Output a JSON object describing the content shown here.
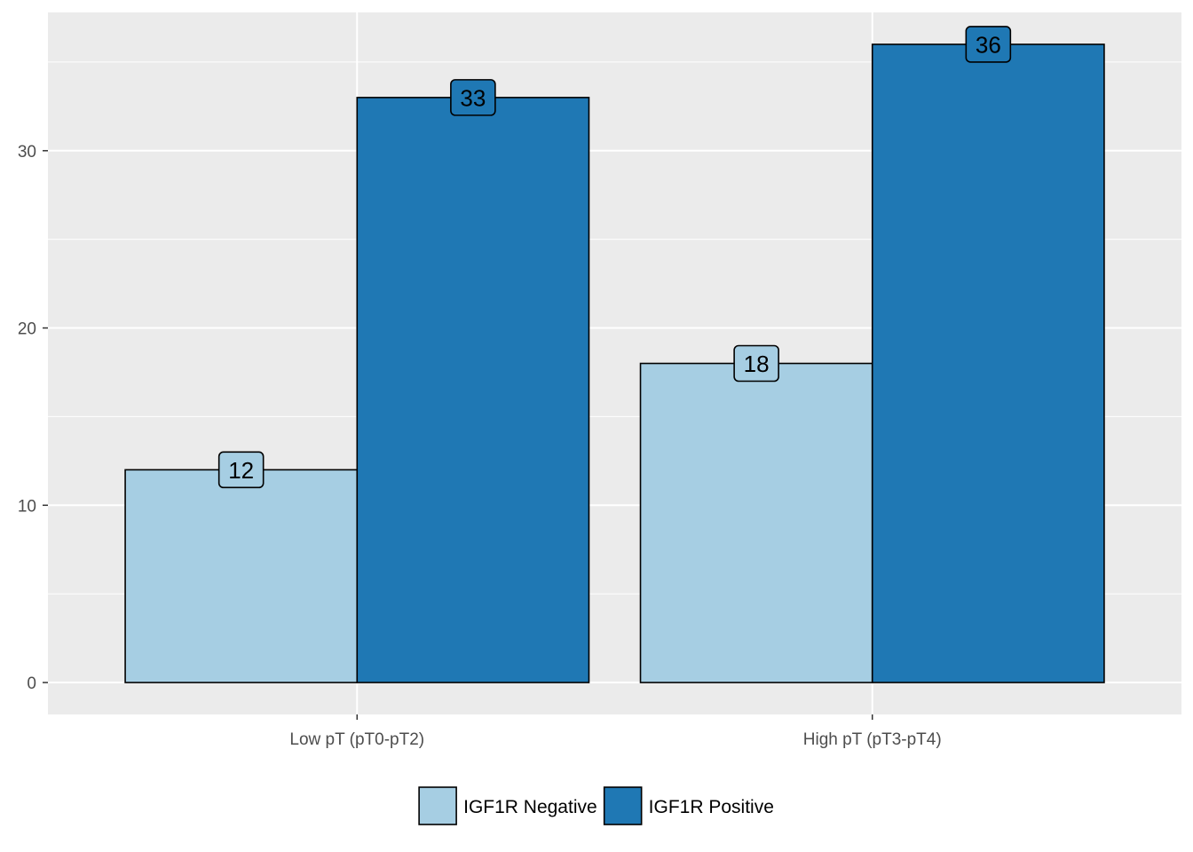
{
  "chart_data": {
    "type": "bar",
    "categories": [
      "Low pT (pT0-pT2)",
      "High pT (pT3-pT4)"
    ],
    "series": [
      {
        "name": "IGF1R Negative",
        "values": [
          12,
          18
        ],
        "color": "#a6cee3"
      },
      {
        "name": "IGF1R Positive",
        "values": [
          33,
          36
        ],
        "color": "#1f78b4"
      }
    ],
    "title": "",
    "xlabel": "",
    "ylabel": "",
    "ylim": [
      -1.8,
      37.8
    ],
    "yticks": [
      0,
      10,
      20,
      30
    ],
    "yticks_minor": [
      5,
      15,
      25,
      35
    ],
    "grid": true,
    "legend_position": "bottom",
    "panel_background": "#ebebeb",
    "grid_color": "#ffffff"
  }
}
